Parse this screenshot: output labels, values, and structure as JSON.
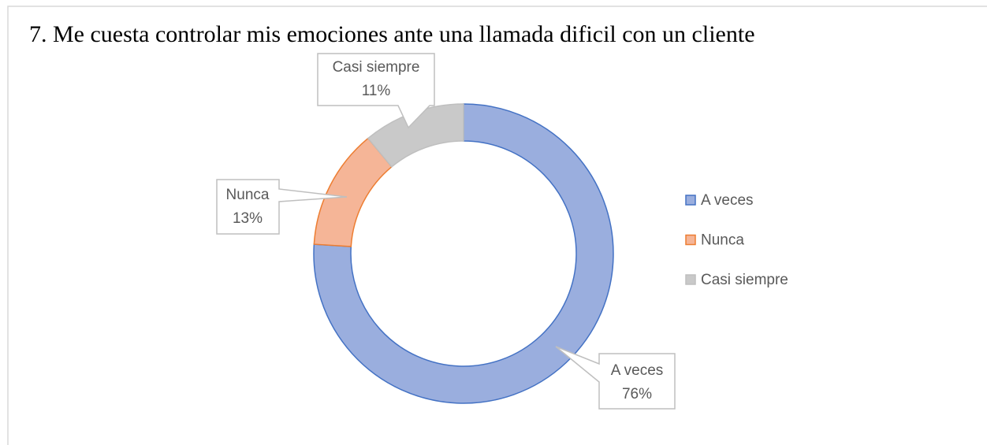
{
  "chart_data": {
    "type": "donut",
    "title": "7. Me cuesta controlar mis emociones ante una llamada dificil  con un cliente",
    "categories": [
      "A veces",
      "Nunca",
      "Casi siempre"
    ],
    "values": [
      76,
      13,
      11
    ],
    "value_labels": [
      "76%",
      "13%",
      "11%"
    ],
    "colors": [
      "#9aaede",
      "#f5b597",
      "#c9c9c9"
    ],
    "edge_colors": [
      "#4472c4",
      "#ed7d31",
      "#bfbfbf"
    ],
    "legend": "right"
  }
}
